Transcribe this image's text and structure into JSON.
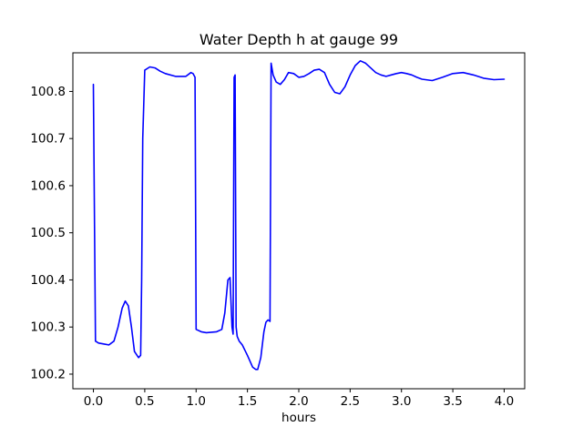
{
  "chart_data": {
    "type": "line",
    "title": "Water Depth h at gauge 99",
    "xlabel": "hours",
    "ylabel": "",
    "xlim": [
      -0.2,
      4.2
    ],
    "ylim": [
      100.169,
      100.882
    ],
    "x_ticks": [
      "0.0",
      "0.5",
      "1.0",
      "1.5",
      "2.0",
      "2.5",
      "3.0",
      "3.5",
      "4.0"
    ],
    "y_ticks": [
      "100.2",
      "100.3",
      "100.4",
      "100.5",
      "100.6",
      "100.7",
      "100.8"
    ],
    "grid": false,
    "legend": null,
    "line_color": "#0000ff",
    "line_width": 1.6,
    "series": [
      {
        "name": "h",
        "points": [
          [
            0.0,
            100.815
          ],
          [
            0.02,
            100.27
          ],
          [
            0.05,
            100.266
          ],
          [
            0.1,
            100.264
          ],
          [
            0.15,
            100.262
          ],
          [
            0.2,
            100.27
          ],
          [
            0.24,
            100.3
          ],
          [
            0.28,
            100.34
          ],
          [
            0.31,
            100.355
          ],
          [
            0.34,
            100.345
          ],
          [
            0.37,
            100.3
          ],
          [
            0.4,
            100.248
          ],
          [
            0.44,
            100.235
          ],
          [
            0.46,
            100.24
          ],
          [
            0.47,
            100.4
          ],
          [
            0.48,
            100.7
          ],
          [
            0.5,
            100.845
          ],
          [
            0.55,
            100.852
          ],
          [
            0.6,
            100.85
          ],
          [
            0.65,
            100.843
          ],
          [
            0.7,
            100.838
          ],
          [
            0.8,
            100.832
          ],
          [
            0.9,
            100.832
          ],
          [
            0.95,
            100.84
          ],
          [
            0.97,
            100.838
          ],
          [
            0.99,
            100.83
          ],
          [
            1.0,
            100.295
          ],
          [
            1.05,
            100.29
          ],
          [
            1.1,
            100.288
          ],
          [
            1.2,
            100.29
          ],
          [
            1.25,
            100.295
          ],
          [
            1.28,
            100.33
          ],
          [
            1.31,
            100.4
          ],
          [
            1.33,
            100.405
          ],
          [
            1.35,
            100.3
          ],
          [
            1.36,
            100.285
          ],
          [
            1.37,
            100.83
          ],
          [
            1.38,
            100.835
          ],
          [
            1.39,
            100.3
          ],
          [
            1.4,
            100.28
          ],
          [
            1.42,
            100.27
          ],
          [
            1.45,
            100.262
          ],
          [
            1.5,
            100.24
          ],
          [
            1.55,
            100.215
          ],
          [
            1.58,
            100.21
          ],
          [
            1.6,
            100.21
          ],
          [
            1.63,
            100.235
          ],
          [
            1.66,
            100.29
          ],
          [
            1.68,
            100.31
          ],
          [
            1.7,
            100.315
          ],
          [
            1.72,
            100.312
          ],
          [
            1.73,
            100.86
          ],
          [
            1.75,
            100.835
          ],
          [
            1.78,
            100.82
          ],
          [
            1.82,
            100.815
          ],
          [
            1.86,
            100.825
          ],
          [
            1.9,
            100.84
          ],
          [
            1.95,
            100.838
          ],
          [
            2.0,
            100.83
          ],
          [
            2.05,
            100.832
          ],
          [
            2.1,
            100.838
          ],
          [
            2.15,
            100.845
          ],
          [
            2.2,
            100.847
          ],
          [
            2.25,
            100.84
          ],
          [
            2.3,
            100.815
          ],
          [
            2.35,
            100.798
          ],
          [
            2.4,
            100.795
          ],
          [
            2.45,
            100.81
          ],
          [
            2.5,
            100.835
          ],
          [
            2.55,
            100.855
          ],
          [
            2.6,
            100.865
          ],
          [
            2.65,
            100.86
          ],
          [
            2.7,
            100.85
          ],
          [
            2.75,
            100.84
          ],
          [
            2.8,
            100.835
          ],
          [
            2.85,
            100.832
          ],
          [
            2.9,
            100.835
          ],
          [
            2.95,
            100.838
          ],
          [
            3.0,
            100.84
          ],
          [
            3.05,
            100.838
          ],
          [
            3.1,
            100.835
          ],
          [
            3.15,
            100.83
          ],
          [
            3.2,
            100.826
          ],
          [
            3.3,
            100.823
          ],
          [
            3.4,
            100.83
          ],
          [
            3.5,
            100.838
          ],
          [
            3.6,
            100.84
          ],
          [
            3.7,
            100.835
          ],
          [
            3.8,
            100.828
          ],
          [
            3.9,
            100.825
          ],
          [
            4.0,
            100.826
          ]
        ]
      }
    ]
  }
}
